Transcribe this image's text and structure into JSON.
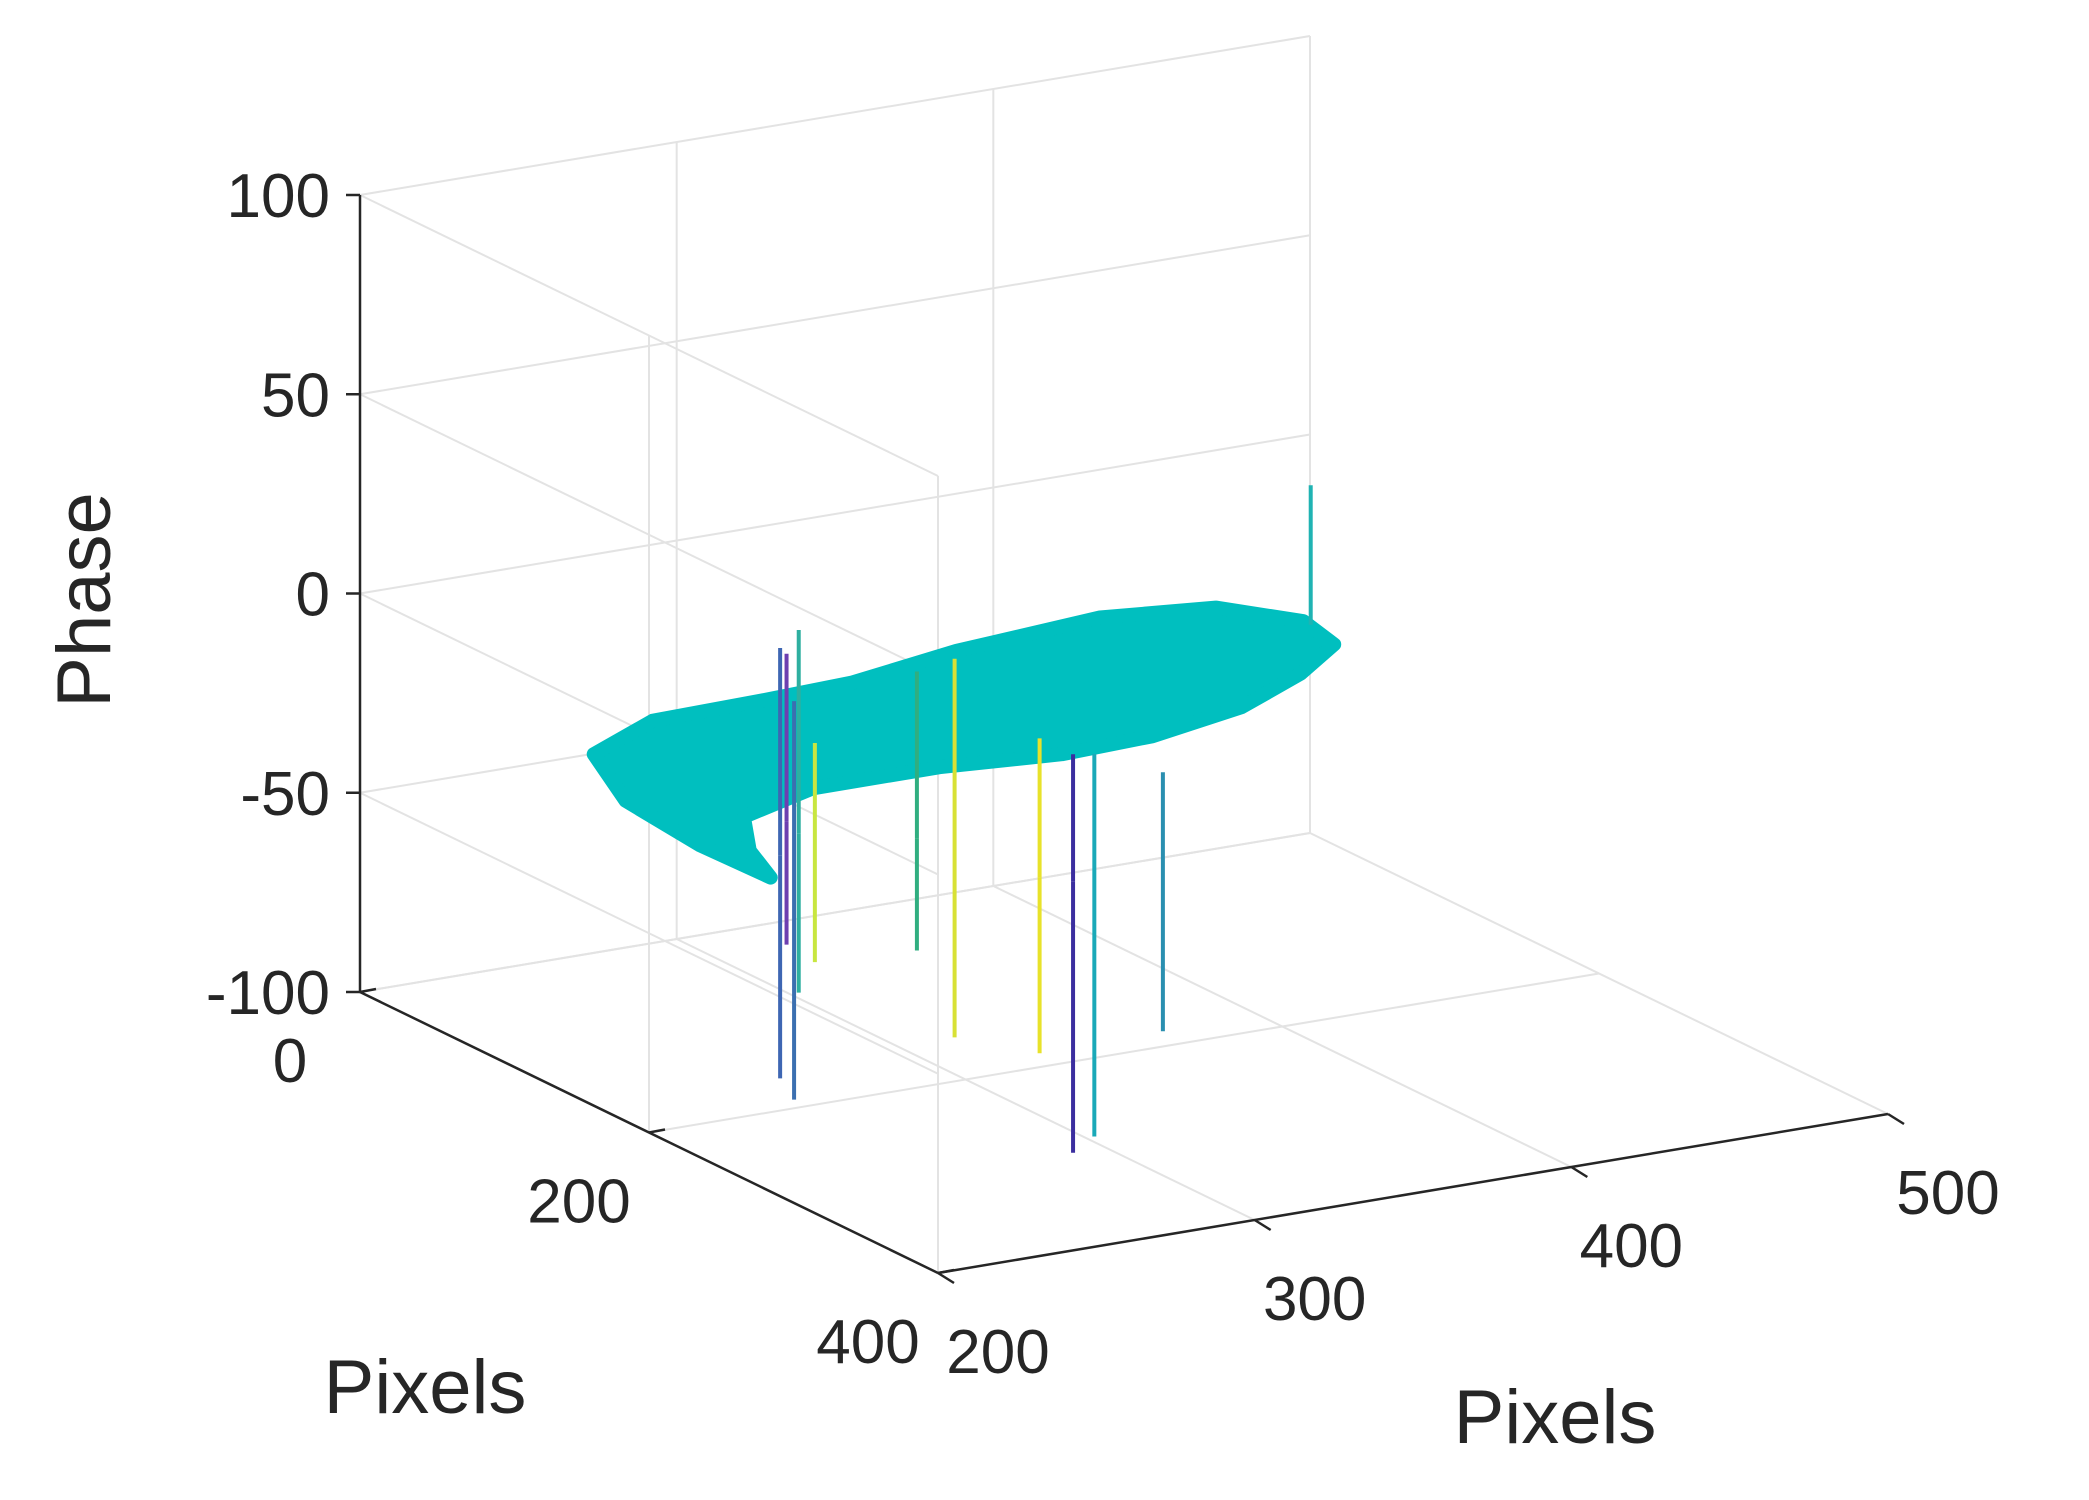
{
  "chart_data": {
    "type": "surface3d",
    "xlabel": "Pixels",
    "ylabel": "Pixels",
    "zlabel": "Phase",
    "x_axis": {
      "ticks": [
        200,
        300,
        400,
        500
      ],
      "tick_labels": [
        "200",
        "300",
        "400",
        "500"
      ],
      "range": [
        200,
        500
      ]
    },
    "y_axis": {
      "ticks": [
        0,
        200,
        400
      ],
      "tick_labels": [
        "0",
        "200",
        "400"
      ],
      "range": [
        0,
        400
      ]
    },
    "z_axis": {
      "ticks": [
        -100,
        -50,
        0,
        50,
        100
      ],
      "tick_labels": [
        "-100",
        "-50",
        "0",
        "50",
        "100"
      ],
      "range": [
        -100,
        100
      ]
    },
    "grid": true,
    "surface": {
      "color": "#00BFBF",
      "base_phase": -30,
      "outline": [
        [
          217,
          247
        ],
        [
          225,
          215
        ],
        [
          240,
          178
        ],
        [
          270,
          160
        ],
        [
          310,
          160
        ],
        [
          345,
          168
        ],
        [
          375,
          165
        ],
        [
          410,
          150
        ],
        [
          440,
          125
        ],
        [
          462,
          100
        ],
        [
          466,
          70
        ],
        [
          452,
          40
        ],
        [
          420,
          30
        ],
        [
          370,
          40
        ],
        [
          330,
          55
        ],
        [
          300,
          58
        ],
        [
          265,
          60
        ],
        [
          235,
          85
        ],
        [
          220,
          140
        ],
        [
          216,
          200
        ]
      ]
    },
    "spikes": [
      {
        "x": 225,
        "y": 260,
        "phase_top": 5,
        "phase_bottom": -50,
        "color": "#C8E640"
      },
      {
        "x": 223,
        "y": 250,
        "phase_top": 14,
        "phase_bottom": -86,
        "color": "#3B6FB0"
      },
      {
        "x": 230,
        "y": 225,
        "phase_top": 22,
        "phase_bottom": -86,
        "color": "#3E66B3"
      },
      {
        "x": 245,
        "y": 205,
        "phase_top": 21,
        "phase_bottom": -70,
        "color": "#2EAFA0"
      },
      {
        "x": 248,
        "y": 190,
        "phase_top": 12,
        "phase_bottom": -61,
        "color": "#6D3FB0"
      },
      {
        "x": 270,
        "y": 232,
        "phase_top": 12,
        "phase_bottom": -58,
        "color": "#30AE80"
      },
      {
        "x": 260,
        "y": 280,
        "phase_top": 25,
        "phase_bottom": -70,
        "color": "#D8E135"
      },
      {
        "x": 280,
        "y": 295,
        "phase_top": 5,
        "phase_bottom": -74,
        "color": "#E8E22A"
      },
      {
        "x": 286,
        "y": 305,
        "phase_top": 2,
        "phase_bottom": -98,
        "color": "#3B2E9F"
      },
      {
        "x": 295,
        "y": 300,
        "phase_top": 0,
        "phase_bottom": -96,
        "color": "#1AA9B8"
      },
      {
        "x": 360,
        "y": 205,
        "phase_top": -40,
        "phase_bottom": -95,
        "color": "#2A8FB0"
      },
      {
        "x": 466,
        "y": 75,
        "phase_top": 5,
        "phase_bottom": -30,
        "color": "#1FB3B3"
      }
    ]
  }
}
